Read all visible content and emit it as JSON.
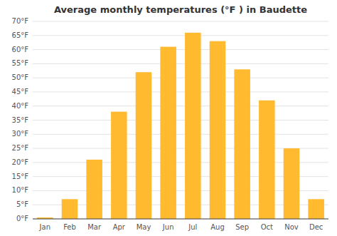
{
  "chart_data": {
    "type": "bar",
    "title": "Average monthly temperatures (°F ) in Baudette",
    "categories": [
      "Jan",
      "Feb",
      "Mar",
      "Apr",
      "May",
      "Jun",
      "Jul",
      "Aug",
      "Sep",
      "Oct",
      "Nov",
      "Dec"
    ],
    "values": [
      0.5,
      7,
      21,
      38,
      52,
      61,
      66,
      63,
      53,
      42,
      25,
      7
    ],
    "color": "#FFBA30",
    "ylim": [
      0,
      70
    ],
    "yticks": [
      {
        "value": 0,
        "label": "0°F"
      },
      {
        "value": 5,
        "label": "5°F"
      },
      {
        "value": 10,
        "label": "10°F"
      },
      {
        "value": 15,
        "label": "15°F"
      },
      {
        "value": 20,
        "label": "20°F"
      },
      {
        "value": 25,
        "label": "25°F"
      },
      {
        "value": 30,
        "label": "30°F"
      },
      {
        "value": 35,
        "label": "35°F"
      },
      {
        "value": 40,
        "label": "40°F"
      },
      {
        "value": 45,
        "label": "45°F"
      },
      {
        "value": 50,
        "label": "50°F"
      },
      {
        "value": 55,
        "label": "55°F"
      },
      {
        "value": 60,
        "label": "60°F"
      },
      {
        "value": 65,
        "label": "65°F"
      },
      {
        "value": 70,
        "label": "70°F"
      }
    ],
    "grid": true
  }
}
